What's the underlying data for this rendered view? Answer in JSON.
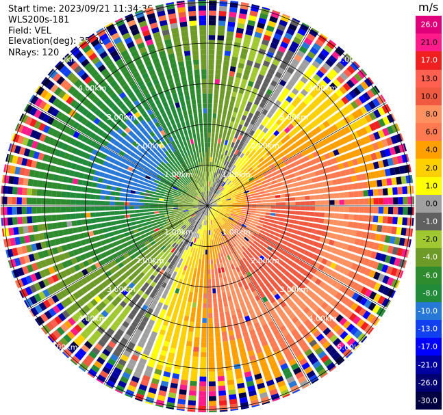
{
  "header": {
    "start_time": "Start time: 2023/09/21 11:34:36",
    "instrument": "WLS200s-181",
    "field": "Field: VEL",
    "elevation": "Elevation(deg): 35.30",
    "nrays": "NRays: 120"
  },
  "colorbar": {
    "unit": "m/s",
    "labels": [
      "26.0",
      "21.0",
      "17.0",
      "13.0",
      "10.0",
      "8.0",
      "6.0",
      "4.0",
      "2.0",
      "1.0",
      "0.0",
      "-1.0",
      "-2.0",
      "-4.0",
      "-6.0",
      "-8.0",
      "-10.0",
      "-13.0",
      "-17.0",
      "-21.0",
      "-26.0",
      "-30.0"
    ],
    "colors": [
      "#e0007a",
      "#ff1c8a",
      "#f02020",
      "#ff6050",
      "#f05a40",
      "#ff9060",
      "#ff7a50",
      "#ffa000",
      "#ffd000",
      "#ffff00",
      "#a0a0a0",
      "#606060",
      "#a0c830",
      "#6e9a28",
      "#2e8b2e",
      "#228b3a",
      "#2878d8",
      "#1040f0",
      "#0000ff",
      "#0000a0",
      "#000070",
      "#000040"
    ]
  },
  "chart_data": {
    "type": "heatmap",
    "projection": "polar PPI",
    "field": "VEL",
    "unit": "m/s",
    "nrays": 120,
    "elevation_deg": 35.3,
    "range_rings_km": [
      1.0,
      2.0,
      3.0,
      4.0,
      5.0
    ],
    "ring_labels": [
      "1.00km",
      "2.00km",
      "3.00km",
      "4.00km",
      "5.00km"
    ],
    "vmin": -30.0,
    "vmax": 26.0,
    "pattern": {
      "inbound_peak": -9.0,
      "outbound_peak": 12.0,
      "inbound_azimuth_deg": 300,
      "outbound_azimuth_deg": 120
    }
  }
}
